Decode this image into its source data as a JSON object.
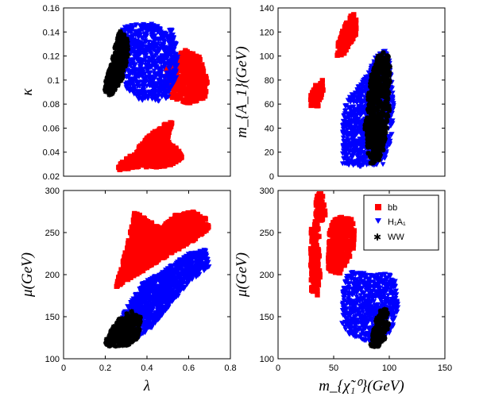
{
  "colors": {
    "bb": "#ff0000",
    "h1a1": "#0000ff",
    "ww": "#000000"
  },
  "legend": {
    "placement": "top-right",
    "entries": [
      {
        "series": "bb",
        "label": "bb",
        "marker": "square"
      },
      {
        "series": "h1a1",
        "label": "H₁A₁",
        "marker": "triangle-down"
      },
      {
        "series": "ww",
        "label": "WW",
        "marker": "star"
      }
    ]
  },
  "chart_data": [
    {
      "type": "scatter",
      "panel": "top-left",
      "xlabel": "",
      "ylabel": "κ",
      "xlim": [
        0,
        0.8
      ],
      "ylim": [
        0.02,
        0.16
      ],
      "xticks": [],
      "yticks": [
        0.02,
        0.04,
        0.06,
        0.08,
        0.1,
        0.12,
        0.14,
        0.16
      ],
      "ytick_labels": [
        "0.02",
        "0.04",
        "0.06",
        "0.08",
        "0.1",
        "0.12",
        "0.14",
        "0.16"
      ],
      "grid": false,
      "regions": [
        {
          "series": "bb",
          "marker": "square",
          "polygon": [
            [
              0.5,
              0.115
            ],
            [
              0.58,
              0.125
            ],
            [
              0.65,
              0.12
            ],
            [
              0.69,
              0.1
            ],
            [
              0.68,
              0.085
            ],
            [
              0.6,
              0.08
            ],
            [
              0.52,
              0.085
            ],
            [
              0.48,
              0.1
            ]
          ]
        },
        {
          "series": "bb",
          "marker": "square",
          "polygon": [
            [
              0.25,
              0.025
            ],
            [
              0.35,
              0.027
            ],
            [
              0.5,
              0.028
            ],
            [
              0.57,
              0.035
            ],
            [
              0.55,
              0.042
            ],
            [
              0.5,
              0.05
            ],
            [
              0.52,
              0.065
            ],
            [
              0.48,
              0.063
            ],
            [
              0.4,
              0.052
            ],
            [
              0.34,
              0.04
            ],
            [
              0.27,
              0.03
            ]
          ]
        },
        {
          "series": "h1a1",
          "marker": "triangle-down",
          "polygon": [
            [
              0.28,
              0.145
            ],
            [
              0.4,
              0.148
            ],
            [
              0.53,
              0.142
            ],
            [
              0.55,
              0.12
            ],
            [
              0.54,
              0.1
            ],
            [
              0.5,
              0.085
            ],
            [
              0.45,
              0.082
            ],
            [
              0.37,
              0.083
            ],
            [
              0.3,
              0.092
            ],
            [
              0.27,
              0.12
            ]
          ]
        },
        {
          "series": "ww",
          "marker": "star",
          "polygon": [
            [
              0.27,
              0.141
            ],
            [
              0.305,
              0.136
            ],
            [
              0.31,
              0.12
            ],
            [
              0.28,
              0.1
            ],
            [
              0.23,
              0.087
            ],
            [
              0.19,
              0.088
            ],
            [
              0.2,
              0.098
            ],
            [
              0.23,
              0.115
            ],
            [
              0.25,
              0.13
            ]
          ]
        }
      ]
    },
    {
      "type": "scatter",
      "panel": "top-right",
      "xlabel": "",
      "ylabel": "m_{A_1}(GeV)",
      "xlim": [
        0,
        150
      ],
      "ylim": [
        0,
        140
      ],
      "xticks": [],
      "yticks": [
        0,
        20,
        40,
        60,
        80,
        100,
        120,
        140
      ],
      "ytick_labels": [
        "0",
        "20",
        "40",
        "60",
        "80",
        "100",
        "120",
        "140"
      ],
      "grid": false,
      "regions": [
        {
          "series": "bb",
          "marker": "square",
          "polygon": [
            [
              28,
              58
            ],
            [
              36,
              58
            ],
            [
              41,
              73
            ],
            [
              40,
              80
            ],
            [
              33,
              75
            ],
            [
              28,
              65
            ]
          ]
        },
        {
          "series": "bb",
          "marker": "square",
          "polygon": [
            [
              53,
              100
            ],
            [
              58,
              100
            ],
            [
              70,
              118
            ],
            [
              71,
              135
            ],
            [
              66,
              135
            ],
            [
              60,
              125
            ],
            [
              53,
              110
            ]
          ]
        },
        {
          "series": "h1a1",
          "marker": "triangle-down",
          "polygon": [
            [
              58,
              10
            ],
            [
              75,
              8
            ],
            [
              95,
              10
            ],
            [
              102,
              30
            ],
            [
              104,
              60
            ],
            [
              101,
              95
            ],
            [
              96,
              105
            ],
            [
              88,
              100
            ],
            [
              80,
              84
            ],
            [
              72,
              75
            ],
            [
              66,
              70
            ],
            [
              60,
              60
            ],
            [
              58,
              40
            ]
          ]
        },
        {
          "series": "ww",
          "marker": "star",
          "polygon": [
            [
              82,
              10
            ],
            [
              90,
              12
            ],
            [
              96,
              25
            ],
            [
              100,
              55
            ],
            [
              101,
              90
            ],
            [
              98,
              105
            ],
            [
              90,
              100
            ],
            [
              84,
              85
            ],
            [
              80,
              60
            ],
            [
              78,
              40
            ],
            [
              80,
              25
            ]
          ]
        }
      ]
    },
    {
      "type": "scatter",
      "panel": "bottom-left",
      "xlabel": "λ",
      "ylabel": "μ(GeV)",
      "xlim": [
        0,
        0.8
      ],
      "ylim": [
        100,
        300
      ],
      "xticks": [
        0,
        0.2,
        0.4,
        0.6,
        0.8
      ],
      "xtick_labels": [
        "0",
        "0.2",
        "0.4",
        "0.6",
        "0.8"
      ],
      "yticks": [
        100,
        150,
        200,
        250,
        300
      ],
      "ytick_labels": [
        "100",
        "150",
        "200",
        "250",
        "300"
      ],
      "grid": false,
      "regions": [
        {
          "series": "bb",
          "marker": "square",
          "polygon": [
            [
              0.25,
              185
            ],
            [
              0.35,
              200
            ],
            [
              0.45,
              215
            ],
            [
              0.55,
              230
            ],
            [
              0.62,
              240
            ],
            [
              0.7,
              255
            ],
            [
              0.69,
              265
            ],
            [
              0.62,
              275
            ],
            [
              0.53,
              270
            ],
            [
              0.47,
              255
            ],
            [
              0.4,
              265
            ],
            [
              0.34,
              275
            ],
            [
              0.33,
              260
            ],
            [
              0.3,
              230
            ],
            [
              0.28,
              210
            ]
          ]
        },
        {
          "series": "h1a1",
          "marker": "triangle-down",
          "polygon": [
            [
              0.21,
              120
            ],
            [
              0.3,
              118
            ],
            [
              0.4,
              130
            ],
            [
              0.5,
              160
            ],
            [
              0.6,
              190
            ],
            [
              0.7,
              210
            ],
            [
              0.68,
              230
            ],
            [
              0.6,
              225
            ],
            [
              0.48,
              205
            ],
            [
              0.38,
              190
            ],
            [
              0.3,
              160
            ],
            [
              0.25,
              135
            ]
          ]
        },
        {
          "series": "ww",
          "marker": "star",
          "polygon": [
            [
              0.2,
              115
            ],
            [
              0.3,
              115
            ],
            [
              0.36,
              125
            ],
            [
              0.37,
              150
            ],
            [
              0.33,
              158
            ],
            [
              0.27,
              148
            ],
            [
              0.23,
              135
            ],
            [
              0.2,
              122
            ]
          ]
        }
      ]
    },
    {
      "type": "scatter",
      "panel": "bottom-right",
      "xlabel": "m_{χ̃₁⁰}(GeV)",
      "ylabel": "μ(GeV)",
      "xlim": [
        0,
        150
      ],
      "ylim": [
        100,
        300
      ],
      "xticks": [
        0,
        50,
        100,
        150
      ],
      "xtick_labels": [
        "0",
        "50",
        "100",
        "150"
      ],
      "yticks": [
        100,
        150,
        200,
        250,
        300
      ],
      "ytick_labels": [
        "100",
        "150",
        "200",
        "250",
        "300"
      ],
      "grid": false,
      "regions": [
        {
          "series": "bb",
          "marker": "square",
          "polygon": [
            [
              30,
              180
            ],
            [
              35,
              172
            ],
            [
              38,
              200
            ],
            [
              37,
              250
            ],
            [
              34,
              265
            ],
            [
              30,
              255
            ],
            [
              29,
              215
            ]
          ]
        },
        {
          "series": "bb",
          "marker": "square",
          "polygon": [
            [
              34,
              270
            ],
            [
              38,
              262
            ],
            [
              43,
              272
            ],
            [
              40,
              295
            ],
            [
              36,
              298
            ],
            [
              34,
              285
            ]
          ]
        },
        {
          "series": "bb",
          "marker": "square",
          "polygon": [
            [
              45,
              205
            ],
            [
              55,
              200
            ],
            [
              62,
              215
            ],
            [
              66,
              225
            ],
            [
              70,
              240
            ],
            [
              67,
              265
            ],
            [
              60,
              270
            ],
            [
              50,
              265
            ],
            [
              46,
              250
            ],
            [
              45,
              225
            ]
          ]
        },
        {
          "series": "h1a1",
          "marker": "triangle-down",
          "polygon": [
            [
              57,
              140
            ],
            [
              65,
              128
            ],
            [
              80,
              120
            ],
            [
              90,
              118
            ],
            [
              102,
              130
            ],
            [
              108,
              160
            ],
            [
              105,
              200
            ],
            [
              85,
              202
            ],
            [
              70,
              202
            ],
            [
              62,
              205
            ],
            [
              58,
              180
            ]
          ]
        },
        {
          "series": "ww",
          "marker": "star",
          "polygon": [
            [
              83,
              115
            ],
            [
              90,
              114
            ],
            [
              97,
              125
            ],
            [
              100,
              145
            ],
            [
              98,
              158
            ],
            [
              93,
              160
            ],
            [
              88,
              148
            ],
            [
              85,
              130
            ]
          ]
        }
      ]
    }
  ]
}
